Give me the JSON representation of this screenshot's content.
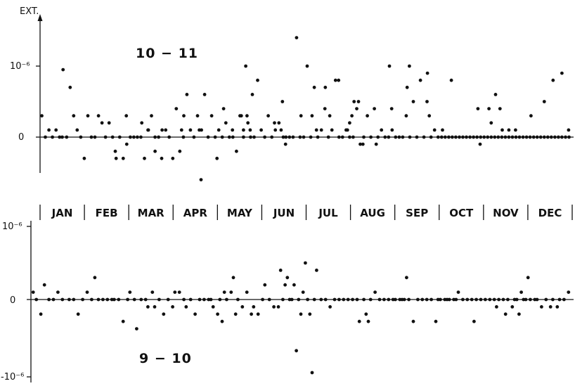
{
  "chart_data": [
    {
      "type": "scatter",
      "panel_label": "10 − 11",
      "y_axis_title": "EXT.",
      "y_tick_labels": [
        "10⁻⁶",
        "0"
      ],
      "ylim": [
        -0.55,
        1.5
      ],
      "xlim": [
        0,
        12
      ],
      "x": [
        0.04,
        0.12,
        0.2,
        0.28,
        0.36,
        0.44,
        0.52,
        0.6,
        0.68,
        0.76,
        0.84,
        0.92,
        1.0,
        1.08,
        1.16,
        1.24,
        1.32,
        1.4,
        1.48,
        1.56,
        1.64,
        1.72,
        1.8,
        1.88,
        1.96,
        2.04,
        2.12,
        2.2,
        2.28,
        2.36,
        2.44,
        2.52,
        2.6,
        2.68,
        2.76,
        2.84,
        2.92,
        3.0,
        3.08,
        3.16,
        3.24,
        3.32,
        3.4,
        3.48,
        3.56,
        3.64,
        3.72,
        3.8,
        3.88,
        3.96,
        4.04,
        4.12,
        4.2,
        4.28,
        4.36,
        4.44,
        4.52,
        4.6,
        4.68,
        4.76,
        4.84,
        4.92,
        5.0,
        5.08,
        5.16,
        5.24,
        5.32,
        5.4,
        5.48,
        5.56,
        5.64,
        5.72,
        5.8,
        5.88,
        5.96,
        6.04,
        6.12,
        6.2,
        6.28,
        6.36,
        6.44,
        6.52,
        6.6,
        6.68,
        6.76,
        6.84,
        6.92,
        7.0,
        7.08,
        7.16,
        7.24,
        7.32,
        7.4,
        7.48,
        7.56,
        7.64,
        7.72,
        7.8,
        7.88,
        7.96,
        8.04,
        8.12,
        8.2,
        8.28,
        8.36,
        8.44,
        8.52,
        8.6,
        8.68,
        8.76,
        8.84,
        8.92,
        9.0,
        9.08,
        9.16,
        9.24,
        9.32,
        9.4,
        9.48,
        9.56,
        9.64,
        9.72,
        9.8,
        9.88,
        9.96,
        10.04,
        10.12,
        10.2,
        10.28,
        10.36,
        10.44,
        10.52,
        10.6,
        10.68,
        10.76,
        10.84,
        10.92,
        11.0,
        11.08,
        11.16,
        11.24,
        11.32,
        11.4,
        11.48,
        11.56,
        11.64,
        11.72,
        11.8,
        11.88,
        11.96
      ],
      "y": [
        0.3,
        0.0,
        0.1,
        0.0,
        0.1,
        0.0,
        0.95,
        0.0,
        0.7,
        0.3,
        0.1,
        0.0,
        -0.3,
        0.3,
        0.0,
        0.0,
        0.3,
        0.2,
        0.0,
        0.2,
        0.0,
        -0.3,
        0.0,
        -0.3,
        -0.1,
        0.0,
        0.0,
        0.0,
        0.0,
        -0.3,
        0.1,
        0.3,
        0.0,
        0.0,
        0.1,
        0.1,
        0.0,
        -0.3,
        0.4,
        -0.2,
        0.0,
        0.6,
        0.1,
        0.0,
        0.3,
        -0.6,
        0.6,
        0.0,
        0.3,
        0.0,
        0.1,
        0.0,
        0.2,
        0.0,
        0.0,
        -0.2,
        0.3,
        0.0,
        0.3,
        0.0,
        0.0,
        0.8,
        0.1,
        0.0,
        0.3,
        0.0,
        0.1,
        0.2,
        0.5,
        0.0,
        0.0,
        0.0,
        1.4,
        0.0,
        0.0,
        1.0,
        0.0,
        0.7,
        0.0,
        0.1,
        0.4,
        0.0,
        0.1,
        0.8,
        0.0,
        0.0,
        0.1,
        0.0,
        0.0,
        0.4,
        -0.1,
        0.0,
        0.3,
        0.0,
        0.4,
        0.0,
        0.1,
        0.0,
        0.0,
        0.1,
        0.0,
        0.0,
        0.0,
        0.3,
        0.0,
        0.5,
        0.0,
        0.8,
        0.0,
        0.9,
        0.0,
        0.1,
        0.0,
        0.0,
        0.0,
        0.0,
        0.0,
        0.0,
        0.0,
        0.0,
        0.0,
        0.0,
        0.0,
        0.0,
        0.0,
        0.0,
        0.0,
        0.0,
        0.0,
        0.0,
        0.0,
        0.0,
        0.0,
        0.0,
        0.0,
        0.0,
        0.0,
        0.0,
        0.0,
        0.0,
        0.0,
        0.0,
        0.0,
        0.0,
        0.0,
        0.0,
        0.0,
        0.0,
        0.0,
        0.0
      ],
      "extra_points": [
        {
          "x": 0.5,
          "y": 0.0
        },
        {
          "x": 1.7,
          "y": -0.2
        },
        {
          "x": 1.95,
          "y": 0.3
        },
        {
          "x": 2.3,
          "y": 0.2
        },
        {
          "x": 2.45,
          "y": 0.1
        },
        {
          "x": 2.6,
          "y": -0.2
        },
        {
          "x": 2.75,
          "y": -0.3
        },
        {
          "x": 3.2,
          "y": 0.1
        },
        {
          "x": 3.25,
          "y": 0.3
        },
        {
          "x": 3.6,
          "y": 0.1
        },
        {
          "x": 3.65,
          "y": 0.1
        },
        {
          "x": 4.0,
          "y": -0.3
        },
        {
          "x": 4.15,
          "y": 0.4
        },
        {
          "x": 4.35,
          "y": 0.1
        },
        {
          "x": 4.55,
          "y": 0.3
        },
        {
          "x": 4.6,
          "y": 0.1
        },
        {
          "x": 4.65,
          "y": 1.0
        },
        {
          "x": 4.7,
          "y": 0.2
        },
        {
          "x": 4.75,
          "y": 0.1
        },
        {
          "x": 4.8,
          "y": 0.6
        },
        {
          "x": 5.3,
          "y": 0.2
        },
        {
          "x": 5.45,
          "y": 0.1
        },
        {
          "x": 5.5,
          "y": 0.0
        },
        {
          "x": 5.55,
          "y": -0.1
        },
        {
          "x": 5.9,
          "y": 0.3
        },
        {
          "x": 6.15,
          "y": 0.3
        },
        {
          "x": 6.25,
          "y": 0.1
        },
        {
          "x": 6.45,
          "y": 0.7
        },
        {
          "x": 6.55,
          "y": 0.3
        },
        {
          "x": 6.75,
          "y": 0.8
        },
        {
          "x": 6.95,
          "y": 0.1
        },
        {
          "x": 7.0,
          "y": 0.2
        },
        {
          "x": 7.05,
          "y": 0.3
        },
        {
          "x": 7.1,
          "y": 0.5
        },
        {
          "x": 7.2,
          "y": 0.5
        },
        {
          "x": 7.3,
          "y": -0.1
        },
        {
          "x": 7.6,
          "y": -0.1
        },
        {
          "x": 7.9,
          "y": 1.0
        },
        {
          "x": 7.95,
          "y": 0.4
        },
        {
          "x": 8.35,
          "y": 1.0
        },
        {
          "x": 8.3,
          "y": 0.7
        },
        {
          "x": 8.75,
          "y": 0.5
        },
        {
          "x": 8.8,
          "y": 0.3
        },
        {
          "x": 9.1,
          "y": 0.1
        },
        {
          "x": 9.3,
          "y": 0.8
        },
        {
          "x": 9.9,
          "y": 0.4
        },
        {
          "x": 9.95,
          "y": -0.1
        },
        {
          "x": 10.15,
          "y": 0.4
        },
        {
          "x": 10.2,
          "y": 0.2
        },
        {
          "x": 10.3,
          "y": 0.6
        },
        {
          "x": 10.4,
          "y": 0.4
        },
        {
          "x": 10.45,
          "y": 0.1
        },
        {
          "x": 10.6,
          "y": 0.1
        },
        {
          "x": 10.75,
          "y": 0.1
        },
        {
          "x": 11.1,
          "y": 0.3
        },
        {
          "x": 11.4,
          "y": 0.5
        },
        {
          "x": 11.6,
          "y": 0.8
        },
        {
          "x": 11.8,
          "y": 0.9
        },
        {
          "x": 11.95,
          "y": 0.1
        }
      ],
      "grid": false
    },
    {
      "type": "scatter",
      "panel_label": "9 − 10",
      "y_tick_labels": [
        "10⁻⁶",
        "0",
        "-10⁻⁶"
      ],
      "ylim": [
        -1.05,
        1.05
      ],
      "xlim": [
        0,
        12
      ],
      "months": [
        "JAN",
        "FEB",
        "MAR",
        "APR",
        "MAY",
        "JUN",
        "JUL",
        "AUG",
        "SEP",
        "OCT",
        "NOV",
        "DEC"
      ],
      "points": [
        {
          "x": 0.05,
          "y": 0.1
        },
        {
          "x": 0.12,
          "y": 0.0
        },
        {
          "x": 0.22,
          "y": -0.2
        },
        {
          "x": 0.3,
          "y": 0.2
        },
        {
          "x": 0.4,
          "y": 0.0
        },
        {
          "x": 0.5,
          "y": 0.0
        },
        {
          "x": 0.6,
          "y": 0.1
        },
        {
          "x": 0.7,
          "y": 0.0
        },
        {
          "x": 0.85,
          "y": 0.0
        },
        {
          "x": 0.95,
          "y": 0.0
        },
        {
          "x": 1.05,
          "y": -0.2
        },
        {
          "x": 1.15,
          "y": 0.0
        },
        {
          "x": 1.25,
          "y": 0.1
        },
        {
          "x": 1.35,
          "y": 0.0
        },
        {
          "x": 1.42,
          "y": 0.3
        },
        {
          "x": 1.5,
          "y": 0.0
        },
        {
          "x": 1.6,
          "y": 0.0
        },
        {
          "x": 1.7,
          "y": 0.0
        },
        {
          "x": 1.8,
          "y": 0.0
        },
        {
          "x": 1.85,
          "y": 0.0
        },
        {
          "x": 1.95,
          "y": 0.0
        },
        {
          "x": 2.05,
          "y": -0.3
        },
        {
          "x": 2.15,
          "y": 0.0
        },
        {
          "x": 2.2,
          "y": 0.1
        },
        {
          "x": 2.3,
          "y": 0.0
        },
        {
          "x": 2.35,
          "y": -0.4
        },
        {
          "x": 2.45,
          "y": 0.0
        },
        {
          "x": 2.55,
          "y": 0.0
        },
        {
          "x": 2.6,
          "y": -0.1
        },
        {
          "x": 2.7,
          "y": 0.1
        },
        {
          "x": 2.75,
          "y": -0.1
        },
        {
          "x": 2.85,
          "y": 0.0
        },
        {
          "x": 2.95,
          "y": -0.2
        },
        {
          "x": 3.05,
          "y": 0.0
        },
        {
          "x": 3.15,
          "y": -0.1
        },
        {
          "x": 3.2,
          "y": 0.1
        },
        {
          "x": 3.3,
          "y": 0.1
        },
        {
          "x": 3.4,
          "y": 0.0
        },
        {
          "x": 3.45,
          "y": -0.1
        },
        {
          "x": 3.55,
          "y": 0.0
        },
        {
          "x": 3.65,
          "y": -0.2
        },
        {
          "x": 3.75,
          "y": 0.0
        },
        {
          "x": 3.85,
          "y": 0.0
        },
        {
          "x": 3.95,
          "y": 0.0
        },
        {
          "x": 4.0,
          "y": 0.0
        },
        {
          "x": 4.05,
          "y": -0.1
        },
        {
          "x": 4.15,
          "y": -0.2
        },
        {
          "x": 4.2,
          "y": 0.0
        },
        {
          "x": 4.25,
          "y": -0.3
        },
        {
          "x": 4.3,
          "y": 0.1
        },
        {
          "x": 4.35,
          "y": 0.0
        },
        {
          "x": 4.45,
          "y": 0.1
        },
        {
          "x": 4.5,
          "y": 0.3
        },
        {
          "x": 4.55,
          "y": -0.2
        },
        {
          "x": 4.6,
          "y": 0.0
        },
        {
          "x": 4.7,
          "y": -0.1
        },
        {
          "x": 4.8,
          "y": 0.1
        },
        {
          "x": 4.9,
          "y": -0.2
        },
        {
          "x": 4.95,
          "y": -0.1
        },
        {
          "x": 5.05,
          "y": -0.2
        },
        {
          "x": 5.15,
          "y": 0.0
        },
        {
          "x": 5.2,
          "y": 0.2
        },
        {
          "x": 5.3,
          "y": 0.0
        },
        {
          "x": 5.4,
          "y": -0.1
        },
        {
          "x": 5.5,
          "y": -0.1
        },
        {
          "x": 5.55,
          "y": 0.4
        },
        {
          "x": 5.6,
          "y": 0.0
        },
        {
          "x": 5.65,
          "y": 0.2
        },
        {
          "x": 5.7,
          "y": 0.3
        },
        {
          "x": 5.75,
          "y": 0.0
        },
        {
          "x": 5.8,
          "y": 0.0
        },
        {
          "x": 5.85,
          "y": 0.2
        },
        {
          "x": 5.9,
          "y": -0.7
        },
        {
          "x": 5.95,
          "y": 0.0
        },
        {
          "x": 6.0,
          "y": -0.2
        },
        {
          "x": 6.05,
          "y": 0.1
        },
        {
          "x": 6.1,
          "y": 0.5
        },
        {
          "x": 6.15,
          "y": 0.0
        },
        {
          "x": 6.2,
          "y": -0.2
        },
        {
          "x": 6.25,
          "y": -1.0
        },
        {
          "x": 6.3,
          "y": 0.0
        },
        {
          "x": 6.35,
          "y": 0.4
        },
        {
          "x": 6.45,
          "y": 0.0
        },
        {
          "x": 6.55,
          "y": 0.0
        },
        {
          "x": 6.65,
          "y": -0.1
        },
        {
          "x": 6.75,
          "y": 0.0
        },
        {
          "x": 6.85,
          "y": 0.0
        },
        {
          "x": 6.95,
          "y": 0.0
        },
        {
          "x": 7.05,
          "y": 0.0
        },
        {
          "x": 7.15,
          "y": 0.0
        },
        {
          "x": 7.25,
          "y": 0.0
        },
        {
          "x": 7.3,
          "y": -0.3
        },
        {
          "x": 7.4,
          "y": 0.0
        },
        {
          "x": 7.45,
          "y": -0.2
        },
        {
          "x": 7.5,
          "y": -0.3
        },
        {
          "x": 7.55,
          "y": 0.0
        },
        {
          "x": 7.65,
          "y": 0.1
        },
        {
          "x": 7.75,
          "y": 0.0
        },
        {
          "x": 7.85,
          "y": 0.0
        },
        {
          "x": 7.95,
          "y": 0.0
        },
        {
          "x": 8.05,
          "y": 0.0
        },
        {
          "x": 8.1,
          "y": 0.0
        },
        {
          "x": 8.2,
          "y": 0.0
        },
        {
          "x": 8.25,
          "y": 0.0
        },
        {
          "x": 8.3,
          "y": 0.0
        },
        {
          "x": 8.35,
          "y": 0.3
        },
        {
          "x": 8.4,
          "y": 0.0
        },
        {
          "x": 8.5,
          "y": -0.3
        },
        {
          "x": 8.6,
          "y": 0.0
        },
        {
          "x": 8.7,
          "y": 0.0
        },
        {
          "x": 8.8,
          "y": 0.0
        },
        {
          "x": 8.9,
          "y": 0.0
        },
        {
          "x": 9.0,
          "y": -0.3
        },
        {
          "x": 9.05,
          "y": 0.0
        },
        {
          "x": 9.1,
          "y": 0.0
        },
        {
          "x": 9.2,
          "y": 0.0
        },
        {
          "x": 9.25,
          "y": 0.0
        },
        {
          "x": 9.3,
          "y": 0.0
        },
        {
          "x": 9.4,
          "y": 0.0
        },
        {
          "x": 9.45,
          "y": 0.0
        },
        {
          "x": 9.5,
          "y": 0.1
        },
        {
          "x": 9.6,
          "y": 0.0
        },
        {
          "x": 9.7,
          "y": 0.0
        },
        {
          "x": 9.8,
          "y": 0.0
        },
        {
          "x": 9.85,
          "y": -0.3
        },
        {
          "x": 9.9,
          "y": 0.0
        },
        {
          "x": 10.0,
          "y": 0.0
        },
        {
          "x": 10.1,
          "y": 0.0
        },
        {
          "x": 10.2,
          "y": 0.0
        },
        {
          "x": 10.3,
          "y": 0.0
        },
        {
          "x": 10.35,
          "y": -0.1
        },
        {
          "x": 10.4,
          "y": 0.0
        },
        {
          "x": 10.5,
          "y": 0.0
        },
        {
          "x": 10.55,
          "y": -0.2
        },
        {
          "x": 10.6,
          "y": 0.0
        },
        {
          "x": 10.7,
          "y": -0.1
        },
        {
          "x": 10.75,
          "y": 0.0
        },
        {
          "x": 10.8,
          "y": 0.0
        },
        {
          "x": 10.85,
          "y": -0.2
        },
        {
          "x": 10.9,
          "y": 0.1
        },
        {
          "x": 10.95,
          "y": 0.0
        },
        {
          "x": 11.0,
          "y": 0.0
        },
        {
          "x": 11.05,
          "y": 0.3
        },
        {
          "x": 11.1,
          "y": 0.0
        },
        {
          "x": 11.2,
          "y": 0.0
        },
        {
          "x": 11.25,
          "y": 0.0
        },
        {
          "x": 11.35,
          "y": -0.1
        },
        {
          "x": 11.45,
          "y": 0.0
        },
        {
          "x": 11.55,
          "y": -0.1
        },
        {
          "x": 11.6,
          "y": 0.0
        },
        {
          "x": 11.7,
          "y": -0.1
        },
        {
          "x": 11.75,
          "y": 0.0
        },
        {
          "x": 11.85,
          "y": 0.0
        },
        {
          "x": 11.95,
          "y": 0.1
        }
      ],
      "grid": false
    }
  ]
}
